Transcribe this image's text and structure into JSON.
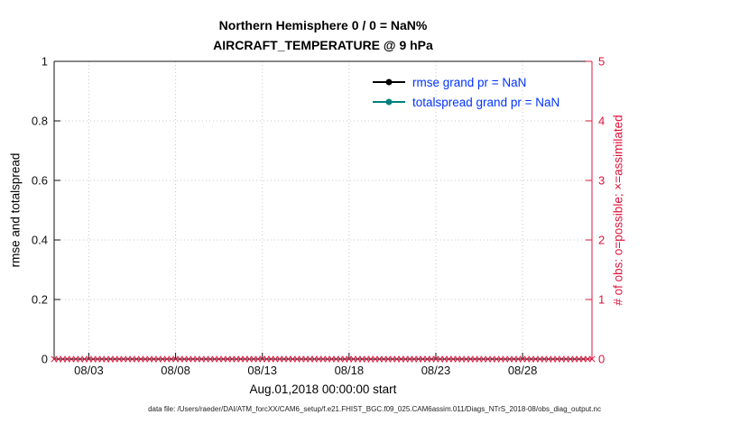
{
  "figure": {
    "title_line1": "Northern Hemisphere 0 / 0 = NaN%",
    "title_line2": "AIRCRAFT_TEMPERATURE @ 9 hPa",
    "xlabel": "Aug.01,2018 00:00:00 start",
    "ylabel_left": "rmse and totalspread",
    "ylabel_right": "# of obs: o=possible; ×=assimilated",
    "caption": "data file: /Users/raeder/DAI/ATM_forcXX/CAM6_setup/f.e21.FHIST_BGC.f09_025.CAM6assim.011/Diags_NTrS_2018-08/obs_diag_output.nc"
  },
  "legend": [
    {
      "label": "rmse grand pr = NaN",
      "color": "#000000"
    },
    {
      "label": "totalspread grand pr = NaN",
      "color": "#008080"
    }
  ],
  "colors": {
    "obs_axis": "#DC143C",
    "legend_text": "#0033FF",
    "grid": "#c8c8c8",
    "axis": "#111111",
    "tick_label": "#111111"
  },
  "chart_data": {
    "type": "line",
    "title": "Northern Hemisphere 0 / 0 = NaN% | AIRCRAFT_TEMPERATURE @ 9 hPa",
    "xlabel": "Aug.01,2018 00:00:00 start",
    "grid": true,
    "legend_position": "top-right-inside",
    "x_axis": {
      "range_days": [
        1,
        32
      ],
      "tick_days": [
        3,
        8,
        13,
        18,
        23,
        28
      ],
      "tick_labels": [
        "08/03",
        "08/08",
        "08/13",
        "08/18",
        "08/23",
        "08/28"
      ]
    },
    "y_left": {
      "label": "rmse and totalspread",
      "range": [
        0,
        1
      ],
      "ticks": [
        0,
        0.2,
        0.4,
        0.6,
        0.8,
        1
      ],
      "tick_labels": [
        "0",
        "0.2",
        "0.4",
        "0.6",
        "0.8",
        "1"
      ]
    },
    "y_right": {
      "label": "# of obs: o=possible; ×=assimilated",
      "range": [
        0,
        5
      ],
      "ticks": [
        0,
        1,
        2,
        3,
        4,
        5
      ],
      "tick_labels": [
        "0",
        "1",
        "2",
        "3",
        "4",
        "5"
      ]
    },
    "series": [
      {
        "name": "rmse grand pr = NaN",
        "color": "#000000",
        "values": []
      },
      {
        "name": "totalspread grand pr = NaN",
        "color": "#008080",
        "values": []
      },
      {
        "name": "obs assimilated (x markers)",
        "color": "#DC143C",
        "marker": "x",
        "y_value": 0,
        "x_start_day": 1,
        "x_end_day": 32,
        "x_step_days": 0.25
      }
    ]
  }
}
